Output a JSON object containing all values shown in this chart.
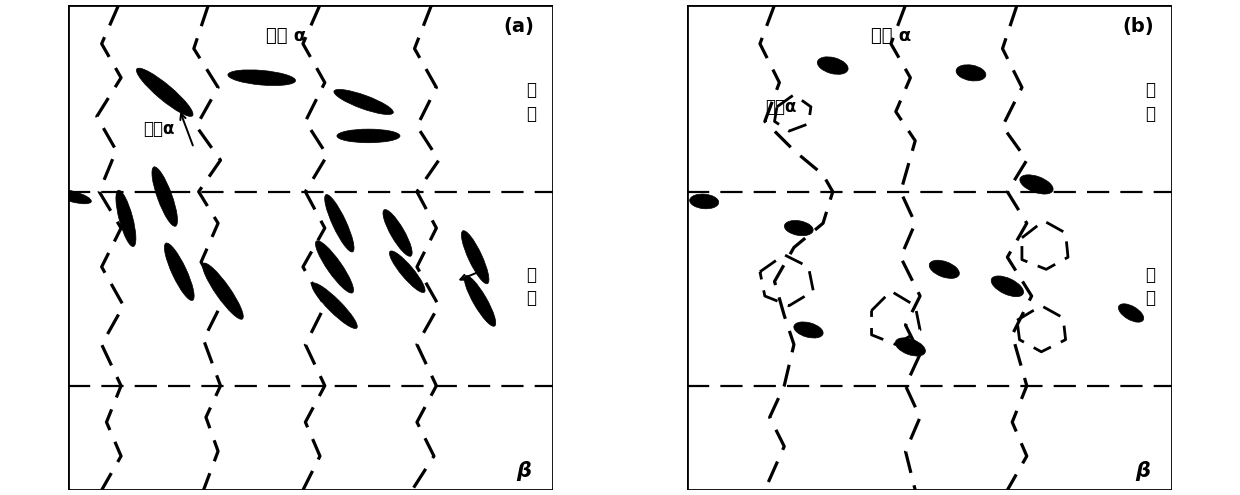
{
  "fig_width": 12.4,
  "fig_height": 4.95,
  "dpi": 100,
  "background_color": "#ffffff",
  "panel_a_label": "(a)",
  "panel_b_label": "(b)",
  "label_zhongxin": "中\n心",
  "label_bianyuan": "边\n缘",
  "label_beta": "β",
  "label_chusheng": "初生 α",
  "label_erci_a": "二次α",
  "label_erci_b": "二次α"
}
